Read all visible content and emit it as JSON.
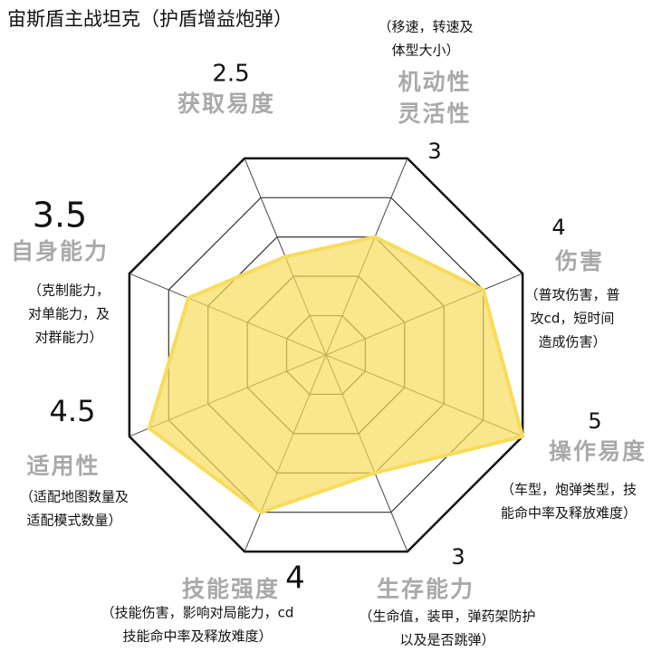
{
  "chart_data": {
    "type": "radar",
    "title": "宙斯盾主战坦克（护盾增益炮弹）",
    "categories": [
      [
        "获取易度"
      ],
      [
        "机动性",
        "灵活性"
      ],
      [
        "伤害"
      ],
      [
        "操作易度"
      ],
      [
        "生存能力"
      ],
      [
        "技能强度"
      ],
      [
        "适用性"
      ],
      [
        "自身能力"
      ]
    ],
    "values": [
      2.5,
      3,
      4,
      5,
      3,
      4,
      4.5,
      3.5
    ],
    "descriptions": [
      null,
      [
        "（移速，转速及",
        "体型大小）"
      ],
      [
        "（普攻伤害，普",
        "攻cd，短时间",
        "造成伤害）"
      ],
      [
        "（车型，炮弹类型，技",
        "能命中率及释放难度）"
      ],
      [
        "（生命值，装甲，弹药架防护",
        "以及是否跳弹）"
      ],
      [
        "（技能伤害，影响对局能力，cd",
        "技能命中率及释放难度）"
      ],
      [
        "（适配地图数量及",
        "适配模式数量）"
      ],
      [
        "（克制能力，",
        "对单能力，及",
        "对群能力）"
      ]
    ],
    "rlim": [
      0,
      5
    ],
    "rticks": [
      1,
      2,
      3,
      4,
      5
    ],
    "color": "#f7dc5c"
  }
}
